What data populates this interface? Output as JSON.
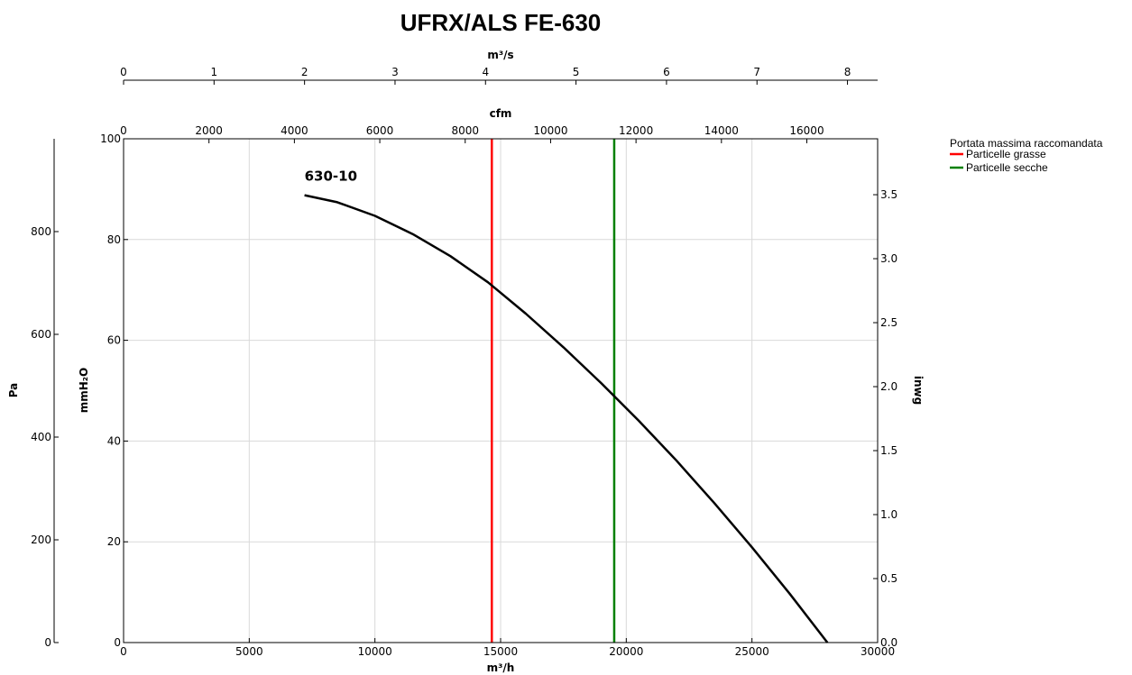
{
  "chart_data": {
    "type": "line",
    "title": "UFRX/ALS FE-630",
    "xlabel": "m³/h",
    "ylabel": "mmH₂O",
    "xlim": [
      0,
      30000
    ],
    "ylim": [
      0,
      100
    ],
    "x_ticks": [
      0,
      5000,
      10000,
      15000,
      20000,
      25000,
      30000
    ],
    "y_ticks": [
      0,
      20,
      40,
      60,
      80,
      100
    ],
    "grid": true,
    "secondary_axes": {
      "top_cfm": {
        "label": "cfm",
        "ticks": [
          "0",
          "2000",
          "4000",
          "6000",
          "8000",
          "10000",
          "12000",
          "14000",
          "16000"
        ],
        "values": [
          0,
          2000,
          4000,
          6000,
          8000,
          10000,
          12000,
          14000,
          16000
        ],
        "per_m3h": 0.5886
      },
      "top_m3s": {
        "label": "m³/s",
        "ticks": [
          "0",
          "1",
          "2",
          "3",
          "4",
          "5",
          "6",
          "7",
          "8"
        ],
        "values": [
          0,
          1,
          2,
          3,
          4,
          5,
          6,
          7,
          8
        ],
        "per_m3h": 0.00027778
      },
      "left_pa": {
        "label": "Pa",
        "ticks": [
          "0",
          "200",
          "400",
          "600",
          "800"
        ],
        "values": [
          0,
          200,
          400,
          600,
          800
        ],
        "per_mmh2o": 9.80665
      },
      "right_inwg": {
        "label": "inwg",
        "ticks": [
          "0.0",
          "0.5",
          "1.0",
          "1.5",
          "2.0",
          "2.5",
          "3.0",
          "3.5"
        ],
        "values": [
          0,
          0.5,
          1.0,
          1.5,
          2.0,
          2.5,
          3.0,
          3.5
        ],
        "per_mmh2o": 0.03937
      }
    },
    "series": [
      {
        "name": "630-10",
        "color": "#000000",
        "x": [
          7200,
          8500,
          10000,
          11500,
          13000,
          14500,
          16000,
          17500,
          19000,
          20500,
          22000,
          23500,
          25000,
          26500,
          28000
        ],
        "y": [
          88.8,
          87.4,
          84.7,
          81.1,
          76.7,
          71.5,
          65.3,
          58.6,
          51.5,
          44.0,
          36.1,
          27.7,
          18.9,
          9.7,
          0.0
        ]
      }
    ],
    "vertical_lines": [
      {
        "name": "Particelle grasse",
        "x": 14650,
        "color": "#ff0000"
      },
      {
        "name": "Particelle secche",
        "x": 19520,
        "color": "#008000"
      }
    ],
    "legend": {
      "title": "Portata massima raccomandata",
      "position": "top-right-outside",
      "entries": [
        {
          "label": "Particelle grasse",
          "color": "#ff0000"
        },
        {
          "label": "Particelle secche",
          "color": "#008000"
        }
      ]
    }
  }
}
